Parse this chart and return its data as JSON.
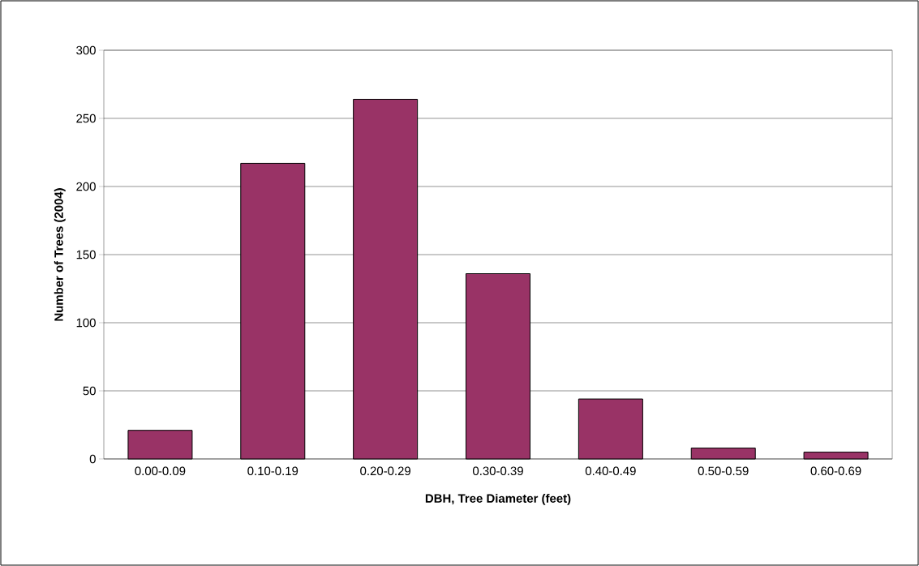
{
  "chart_data": {
    "type": "bar",
    "xlabel": "DBH, Tree Diameter (feet)",
    "ylabel": "Number of Trees (2004)",
    "categories": [
      "0.00-0.09",
      "0.10-0.19",
      "0.20-0.29",
      "0.30-0.39",
      "0.40-0.49",
      "0.50-0.59",
      "0.60-0.69"
    ],
    "values": [
      21,
      217,
      264,
      136,
      44,
      8,
      5
    ],
    "color": "#993366",
    "ylim": [
      0,
      300
    ],
    "yticks": [
      0,
      50,
      100,
      150,
      200,
      250,
      300
    ],
    "grid": "y"
  }
}
